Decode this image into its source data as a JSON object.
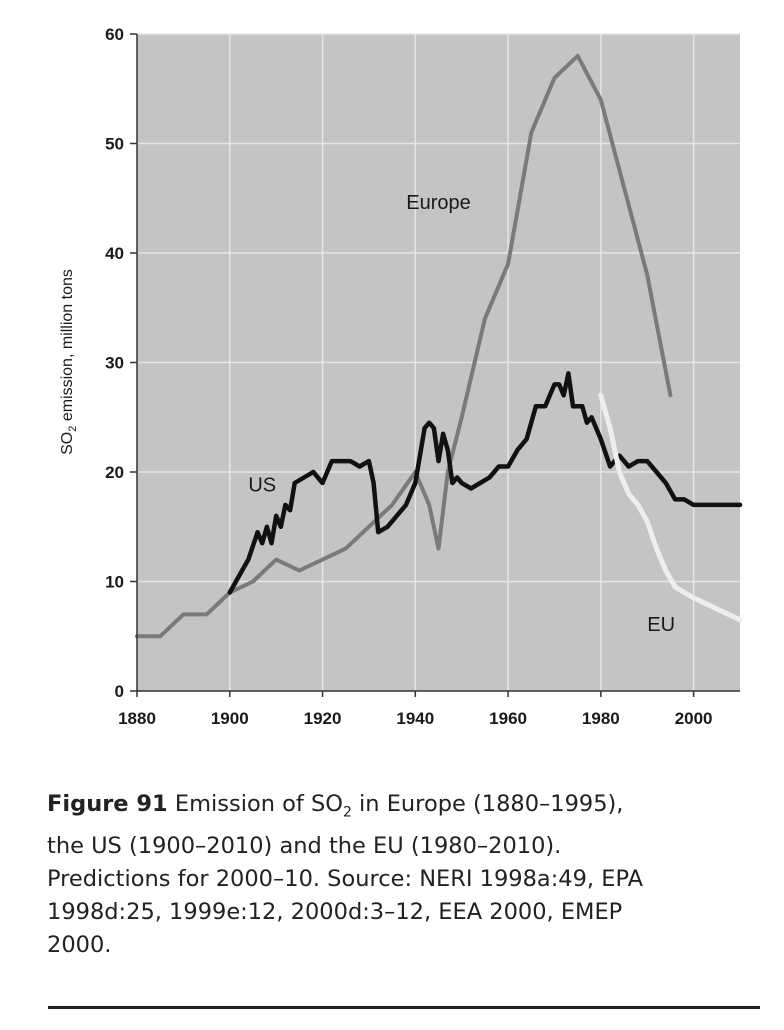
{
  "chart_data": {
    "type": "line",
    "ylabel": "SO2 emission, million tons",
    "ylim": [
      0,
      60
    ],
    "xlim": [
      1880,
      2010
    ],
    "yticks": [
      0,
      10,
      20,
      30,
      40,
      50,
      60
    ],
    "xticks": [
      1880,
      1900,
      1920,
      1940,
      1960,
      1980,
      2000
    ],
    "grid": true,
    "series": [
      {
        "name": "Europe",
        "color": "#7a7a7a",
        "label_pos": [
          1945,
          44
        ],
        "x": [
          1880,
          1885,
          1890,
          1895,
          1900,
          1905,
          1910,
          1915,
          1920,
          1925,
          1930,
          1935,
          1940,
          1943,
          1945,
          1947,
          1950,
          1955,
          1960,
          1965,
          1970,
          1975,
          1980,
          1985,
          1990,
          1995
        ],
        "y": [
          5,
          5,
          7,
          7,
          9,
          10,
          12,
          11,
          12,
          13,
          15,
          17,
          20,
          17,
          13,
          20,
          25,
          34,
          39,
          51,
          56,
          58,
          54,
          46,
          38,
          27
        ]
      },
      {
        "name": "US",
        "color": "#111111",
        "label_pos": [
          1907,
          18.2
        ],
        "x": [
          1900,
          1902,
          1904,
          1906,
          1907,
          1908,
          1909,
          1910,
          1911,
          1912,
          1913,
          1914,
          1916,
          1918,
          1920,
          1922,
          1924,
          1926,
          1928,
          1930,
          1931,
          1932,
          1934,
          1936,
          1938,
          1940,
          1942,
          1943,
          1944,
          1945,
          1946,
          1947,
          1948,
          1949,
          1950,
          1952,
          1954,
          1956,
          1958,
          1960,
          1962,
          1964,
          1966,
          1968,
          1970,
          1971,
          1972,
          1973,
          1974,
          1975,
          1976,
          1977,
          1978,
          1980,
          1982,
          1984,
          1986,
          1988,
          1990,
          1992,
          1994,
          1996,
          1998,
          2000,
          2005,
          2010
        ],
        "y": [
          9,
          10.5,
          12,
          14.5,
          13.5,
          15,
          13.5,
          16,
          15,
          17,
          16.5,
          19,
          19.5,
          20,
          19,
          21,
          21,
          21,
          20.5,
          21,
          19,
          14.5,
          15,
          16,
          17,
          19,
          24,
          24.5,
          24,
          21,
          23.5,
          22,
          19,
          19.5,
          19,
          18.5,
          19,
          19.5,
          20.5,
          20.5,
          22,
          23,
          26,
          26,
          28,
          28,
          27,
          29,
          26,
          26,
          26,
          24.5,
          25,
          23,
          20.5,
          21.5,
          20.5,
          21,
          21,
          20,
          19,
          17.5,
          17.5,
          17,
          17,
          17
        ]
      },
      {
        "name": "EU",
        "color": "#eeeeee",
        "label_pos": [
          1993,
          5.5
        ],
        "x": [
          1980,
          1982,
          1984,
          1986,
          1988,
          1990,
          1992,
          1994,
          1996,
          2000,
          2005,
          2010
        ],
        "y": [
          27,
          24,
          20,
          18,
          17,
          15.5,
          13,
          11,
          9.5,
          8.5,
          7.5,
          6.5
        ]
      }
    ]
  },
  "caption": {
    "figure_label": "Figure 91",
    "part1": " Emission of SO",
    "sub": "2",
    "part2": " in Europe (1880–1995),",
    "line2": "the US (1900–2010) and the EU (1980–2010).",
    "line3": "Predictions for 2000–10. Source: NERI 1998a:49, EPA",
    "line4": "1998d:25, 1999e:12, 2000d:3–12, EEA 2000, EMEP",
    "line5": "2000."
  }
}
